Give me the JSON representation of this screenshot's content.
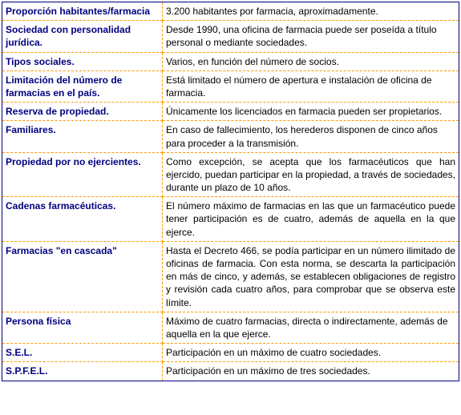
{
  "table": {
    "rows": [
      {
        "label": "Proporción habitantes/farmacia",
        "value": "3.200 habitantes por farmacia, aproximadamente.",
        "justify": false
      },
      {
        "label": "Sociedad con personalidad jurídica.",
        "value": "Desde 1990, una oficina de farmacia puede ser poseída a título personal o mediante sociedades.",
        "justify": false
      },
      {
        "label": "Tipos sociales.",
        "value": "Varios, en función del número de socios.",
        "justify": false
      },
      {
        "label": "Limitación del número de farmacias en el país.",
        "value": "Está limitado el número de apertura e instalación de oficina de farmacia.",
        "justify": false
      },
      {
        "label": "Reserva de propiedad.",
        "value": "Únicamente los licenciados en farmacia pueden ser propietarios.",
        "justify": true
      },
      {
        "label": "Familiares.",
        "value": "En caso de fallecimiento, los herederos disponen de cinco años para proceder a la transmisión.",
        "justify": false
      },
      {
        "label": "Propiedad por no ejercientes.",
        "value": "Como excepción, se acepta que los farmacéuticos que han ejercido, puedan participar en la propiedad, a través de sociedades, durante un plazo de 10 años.",
        "justify": true
      },
      {
        "label": "Cadenas farmacéuticas.",
        "value": "El número máximo de farmacias en las que un farmacéutico puede tener participación es de cuatro, además de aquella en la que ejerce.",
        "justify": true
      },
      {
        "label": "Farmacias \"en cascada\"",
        "value": "Hasta el Decreto 466, se podía participar en un número ilimitado de oficinas de farmacia. Con esta norma, se descarta la participación en más de cinco, y además, se establecen obligaciones de registro y revisión cada cuatro años, para comprobar que se observa este límite.",
        "justify": true
      },
      {
        "label": "Persona física",
        "value": "Máximo de cuatro farmacias, directa o indirectamente, además de aquella en la que ejerce.",
        "justify": false
      },
      {
        "label": "S.E.L.",
        "value": "Participación en un máximo de cuatro sociedades.",
        "justify": false
      },
      {
        "label": "S.P.F.E.L.",
        "value": "Participación en un máximo de tres sociedades.",
        "justify": false
      }
    ],
    "colors": {
      "label_color": "#000080",
      "value_color": "#000000",
      "border_outer": "#000080",
      "border_inner": "#ff9900",
      "background": "#ffffff"
    },
    "fontsize": 12,
    "label_col_width": 200
  }
}
